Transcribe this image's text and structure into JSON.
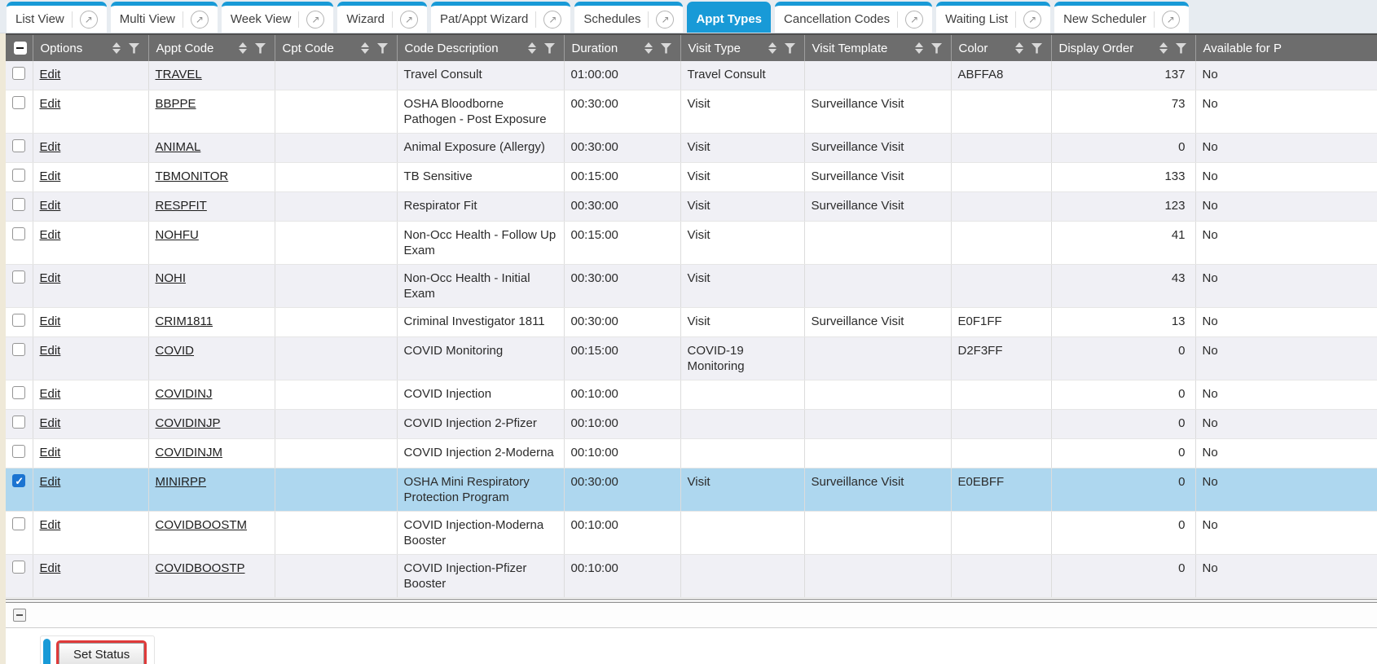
{
  "tabs": [
    {
      "label": "List View",
      "active": false
    },
    {
      "label": "Multi View",
      "active": false
    },
    {
      "label": "Week View",
      "active": false
    },
    {
      "label": "Wizard",
      "active": false
    },
    {
      "label": "Pat/Appt Wizard",
      "active": false
    },
    {
      "label": "Schedules",
      "active": false
    },
    {
      "label": "Appt Types",
      "active": true
    },
    {
      "label": "Cancellation Codes",
      "active": false
    },
    {
      "label": "Waiting List",
      "active": false
    },
    {
      "label": "New Scheduler",
      "active": false
    }
  ],
  "external_icon_glyph": "↗",
  "table": {
    "columns": [
      "Options",
      "Appt Code",
      "Cpt Code",
      "Code Description",
      "Duration",
      "Visit Type",
      "Visit Template",
      "Color",
      "Display Order",
      "Available for P"
    ],
    "rows": [
      {
        "options": "Edit",
        "appt_code": "TRAVEL",
        "cpt_code": "",
        "description": "Travel Consult",
        "duration": "01:00:00",
        "visit_type": "Travel Consult",
        "visit_template": "",
        "color": "ABFFA8",
        "display_order": "137",
        "available": "No",
        "selected": false
      },
      {
        "options": "Edit",
        "appt_code": "BBPPE",
        "cpt_code": "",
        "description": "OSHA Bloodborne Pathogen - Post Exposure",
        "duration": "00:30:00",
        "visit_type": "Visit",
        "visit_template": "Surveillance Visit",
        "color": "",
        "display_order": "73",
        "available": "No",
        "selected": false
      },
      {
        "options": "Edit",
        "appt_code": "ANIMAL",
        "cpt_code": "",
        "description": "Animal Exposure (Allergy)",
        "duration": "00:30:00",
        "visit_type": "Visit",
        "visit_template": "Surveillance Visit",
        "color": "",
        "display_order": "0",
        "available": "No",
        "selected": false
      },
      {
        "options": "Edit",
        "appt_code": "TBMONITOR",
        "cpt_code": "",
        "description": "TB Sensitive",
        "duration": "00:15:00",
        "visit_type": "Visit",
        "visit_template": "Surveillance Visit",
        "color": "",
        "display_order": "133",
        "available": "No",
        "selected": false
      },
      {
        "options": "Edit",
        "appt_code": "RESPFIT",
        "cpt_code": "",
        "description": "Respirator Fit",
        "duration": "00:30:00",
        "visit_type": "Visit",
        "visit_template": "Surveillance Visit",
        "color": "",
        "display_order": "123",
        "available": "No",
        "selected": false
      },
      {
        "options": "Edit",
        "appt_code": "NOHFU",
        "cpt_code": "",
        "description": "Non-Occ Health - Follow Up Exam",
        "duration": "00:15:00",
        "visit_type": "Visit",
        "visit_template": "",
        "color": "",
        "display_order": "41",
        "available": "No",
        "selected": false
      },
      {
        "options": "Edit",
        "appt_code": "NOHI",
        "cpt_code": "",
        "description": "Non-Occ Health - Initial Exam",
        "duration": "00:30:00",
        "visit_type": "Visit",
        "visit_template": "",
        "color": "",
        "display_order": "43",
        "available": "No",
        "selected": false
      },
      {
        "options": "Edit",
        "appt_code": "CRIM1811",
        "cpt_code": "",
        "description": "Criminal Investigator 1811",
        "duration": "00:30:00",
        "visit_type": "Visit",
        "visit_template": "Surveillance Visit",
        "color": "E0F1FF",
        "display_order": "13",
        "available": "No",
        "selected": false
      },
      {
        "options": "Edit",
        "appt_code": "COVID",
        "cpt_code": "",
        "description": "COVID Monitoring",
        "duration": "00:15:00",
        "visit_type": "COVID-19 Monitoring",
        "visit_template": "",
        "color": "D2F3FF",
        "display_order": "0",
        "available": "No",
        "selected": false
      },
      {
        "options": "Edit",
        "appt_code": "COVIDINJ",
        "cpt_code": "",
        "description": "COVID Injection",
        "duration": "00:10:00",
        "visit_type": "",
        "visit_template": "",
        "color": "",
        "display_order": "0",
        "available": "No",
        "selected": false
      },
      {
        "options": "Edit",
        "appt_code": "COVIDINJP",
        "cpt_code": "",
        "description": "COVID Injection 2-Pfizer",
        "duration": "00:10:00",
        "visit_type": "",
        "visit_template": "",
        "color": "",
        "display_order": "0",
        "available": "No",
        "selected": false
      },
      {
        "options": "Edit",
        "appt_code": "COVIDINJM",
        "cpt_code": "",
        "description": "COVID Injection 2-Moderna",
        "duration": "00:10:00",
        "visit_type": "",
        "visit_template": "",
        "color": "",
        "display_order": "0",
        "available": "No",
        "selected": false
      },
      {
        "options": "Edit",
        "appt_code": "MINIRPP",
        "cpt_code": "",
        "description": "OSHA Mini Respiratory Protection Program",
        "duration": "00:30:00",
        "visit_type": "Visit",
        "visit_template": "Surveillance Visit",
        "color": "E0EBFF",
        "display_order": "0",
        "available": "No",
        "selected": true
      },
      {
        "options": "Edit",
        "appt_code": "COVIDBOOSTM",
        "cpt_code": "",
        "description": "COVID Injection-Moderna Booster",
        "duration": "00:10:00",
        "visit_type": "",
        "visit_template": "",
        "color": "",
        "display_order": "0",
        "available": "No",
        "selected": false
      },
      {
        "options": "Edit",
        "appt_code": "COVIDBOOSTP",
        "cpt_code": "",
        "description": "COVID Injection-Pfizer Booster",
        "duration": "00:10:00",
        "visit_type": "",
        "visit_template": "",
        "color": "",
        "display_order": "0",
        "available": "No",
        "selected": false
      }
    ]
  },
  "footer": {
    "set_status_label": "Set Status"
  },
  "colors": {
    "accent": "#189ad7",
    "header-bg": "#6d6d6d",
    "stripe": "#f0f0f5",
    "selected": "#aed7ef",
    "check-blue": "#1b74d1",
    "ann-red": "#e03a3a",
    "beige": "#efe9d8",
    "tabbar-bg": "#e7ecf1"
  }
}
